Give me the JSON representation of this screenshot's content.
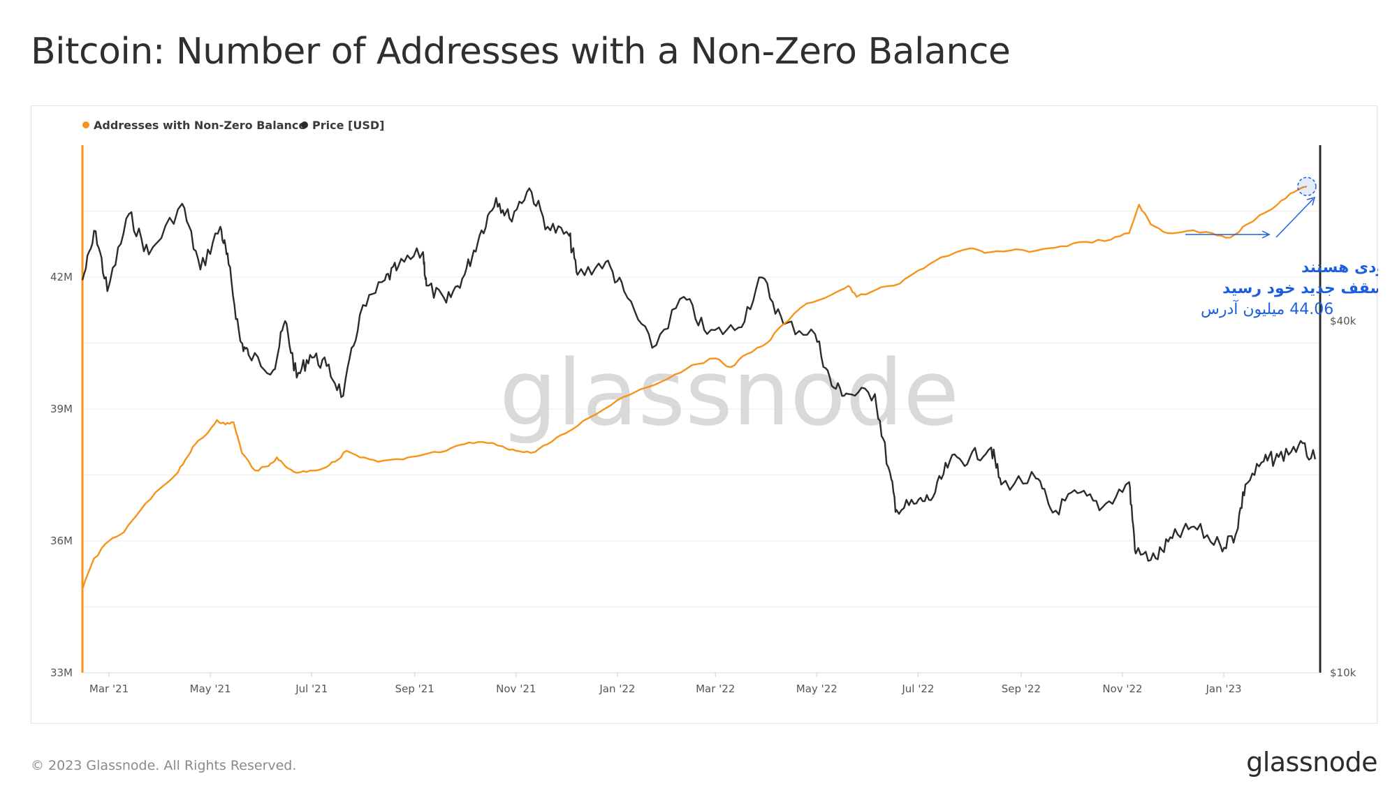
{
  "title": "Bitcoin: Number of Addresses with a Non-Zero Balance",
  "footer": {
    "copyright": "© 2023 Glassnode. All Rights Reserved.",
    "logo": "glassnode"
  },
  "watermark": "glassnode",
  "colors": {
    "addresses": "#f7931a",
    "price": "#2b2b2b",
    "annotation": "#1b5fe0",
    "grid": "#ececec"
  },
  "chart_data": {
    "type": "line",
    "title": "Bitcoin: Number of Addresses with a Non-Zero Balance",
    "legend_position": "top-left",
    "grid": true,
    "legend": [
      "Addresses with Non-Zero Balance",
      "Price [USD]"
    ],
    "x_ticks": [
      "Mar '21",
      "May '21",
      "Jul '21",
      "Sep '21",
      "Nov '21",
      "Jan '22",
      "Mar '22",
      "May '22",
      "Jul '22",
      "Sep '22",
      "Nov '22",
      "Jan '23"
    ],
    "x_range": [
      "2021-02-13",
      "2023-02-28"
    ],
    "y_left": {
      "ticks": [
        "33M",
        "36M",
        "39M",
        "42M"
      ],
      "range": [
        33000000,
        45000000
      ]
    },
    "y_right": {
      "ticks": [
        "$10k",
        "$40k"
      ],
      "scale": "log",
      "range": [
        10000,
        80000
      ]
    },
    "series": [
      {
        "name": "Addresses with Non-Zero Balance",
        "axis": "left",
        "points": [
          [
            "2021-02-13",
            34.9
          ],
          [
            "2021-02-20",
            35.6
          ],
          [
            "2021-03-01",
            36.0
          ],
          [
            "2021-03-10",
            36.2
          ],
          [
            "2021-03-20",
            36.7
          ],
          [
            "2021-04-01",
            37.2
          ],
          [
            "2021-04-10",
            37.5
          ],
          [
            "2021-04-16",
            37.85
          ],
          [
            "2021-04-22",
            38.2
          ],
          [
            "2021-04-28",
            38.4
          ],
          [
            "2021-05-05",
            38.75
          ],
          [
            "2021-05-10",
            38.65
          ],
          [
            "2021-05-15",
            38.7
          ],
          [
            "2021-05-20",
            38.0
          ],
          [
            "2021-05-28",
            37.6
          ],
          [
            "2021-06-05",
            37.7
          ],
          [
            "2021-06-10",
            37.9
          ],
          [
            "2021-06-15",
            37.7
          ],
          [
            "2021-06-22",
            37.55
          ],
          [
            "2021-06-30",
            37.6
          ],
          [
            "2021-07-08",
            37.65
          ],
          [
            "2021-07-15",
            37.8
          ],
          [
            "2021-07-22",
            38.05
          ],
          [
            "2021-07-30",
            37.9
          ],
          [
            "2021-08-10",
            37.8
          ],
          [
            "2021-08-25",
            37.85
          ],
          [
            "2021-09-05",
            37.95
          ],
          [
            "2021-09-20",
            38.05
          ],
          [
            "2021-10-01",
            38.2
          ],
          [
            "2021-10-12",
            38.25
          ],
          [
            "2021-10-24",
            38.15
          ],
          [
            "2021-11-01",
            38.05
          ],
          [
            "2021-11-10",
            38.0
          ],
          [
            "2021-11-20",
            38.2
          ],
          [
            "2021-12-01",
            38.45
          ],
          [
            "2021-12-15",
            38.8
          ],
          [
            "2022-01-01",
            39.2
          ],
          [
            "2022-01-15",
            39.45
          ],
          [
            "2022-02-01",
            39.7
          ],
          [
            "2022-02-15",
            40.0
          ],
          [
            "2022-03-01",
            40.15
          ],
          [
            "2022-03-10",
            39.95
          ],
          [
            "2022-03-20",
            40.25
          ],
          [
            "2022-04-01",
            40.5
          ],
          [
            "2022-04-10",
            40.9
          ],
          [
            "2022-04-25",
            41.4
          ],
          [
            "2022-05-10",
            41.6
          ],
          [
            "2022-05-20",
            41.8
          ],
          [
            "2022-05-25",
            41.55
          ],
          [
            "2022-06-05",
            41.7
          ],
          [
            "2022-06-20",
            41.85
          ],
          [
            "2022-07-01",
            42.15
          ],
          [
            "2022-07-15",
            42.45
          ],
          [
            "2022-08-01",
            42.65
          ],
          [
            "2022-08-10",
            42.55
          ],
          [
            "2022-08-25",
            42.6
          ],
          [
            "2022-09-10",
            42.6
          ],
          [
            "2022-09-25",
            42.7
          ],
          [
            "2022-10-10",
            42.8
          ],
          [
            "2022-10-25",
            42.85
          ],
          [
            "2022-11-05",
            43.0
          ],
          [
            "2022-11-11",
            43.65
          ],
          [
            "2022-11-18",
            43.2
          ],
          [
            "2022-11-28",
            43.0
          ],
          [
            "2022-12-10",
            43.05
          ],
          [
            "2022-12-25",
            43.0
          ],
          [
            "2023-01-05",
            42.9
          ],
          [
            "2023-01-15",
            43.2
          ],
          [
            "2023-01-30",
            43.55
          ],
          [
            "2023-02-10",
            43.9
          ],
          [
            "2023-02-20",
            44.06
          ]
        ]
      },
      {
        "name": "Price [USD]",
        "axis": "right",
        "points": [
          [
            "2021-02-13",
            47000
          ],
          [
            "2021-02-21",
            57000
          ],
          [
            "2021-02-28",
            45000
          ],
          [
            "2021-03-13",
            61000
          ],
          [
            "2021-03-25",
            52000
          ],
          [
            "2021-04-14",
            63500
          ],
          [
            "2021-04-25",
            49000
          ],
          [
            "2021-05-07",
            58000
          ],
          [
            "2021-05-12",
            50000
          ],
          [
            "2021-05-19",
            37000
          ],
          [
            "2021-05-24",
            35000
          ],
          [
            "2021-06-08",
            33000
          ],
          [
            "2021-06-15",
            40000
          ],
          [
            "2021-06-22",
            32000
          ],
          [
            "2021-06-30",
            35000
          ],
          [
            "2021-07-10",
            33500
          ],
          [
            "2021-07-20",
            29800
          ],
          [
            "2021-07-30",
            41000
          ],
          [
            "2021-08-14",
            47000
          ],
          [
            "2021-08-22",
            49500
          ],
          [
            "2021-09-06",
            52500
          ],
          [
            "2021-09-08",
            46000
          ],
          [
            "2021-09-20",
            43000
          ],
          [
            "2021-10-01",
            48000
          ],
          [
            "2021-10-10",
            56000
          ],
          [
            "2021-10-20",
            65000
          ],
          [
            "2021-10-28",
            60000
          ],
          [
            "2021-11-09",
            67500
          ],
          [
            "2021-11-20",
            58000
          ],
          [
            "2021-12-03",
            56000
          ],
          [
            "2021-12-08",
            48000
          ],
          [
            "2021-12-25",
            50500
          ],
          [
            "2022-01-05",
            45000
          ],
          [
            "2022-01-22",
            36000
          ],
          [
            "2022-02-10",
            44000
          ],
          [
            "2022-02-24",
            38000
          ],
          [
            "2022-03-15",
            39000
          ],
          [
            "2022-03-29",
            47500
          ],
          [
            "2022-04-11",
            39500
          ],
          [
            "2022-04-30",
            38000
          ],
          [
            "2022-05-10",
            31000
          ],
          [
            "2022-05-20",
            30000
          ],
          [
            "2022-06-05",
            30000
          ],
          [
            "2022-06-13",
            22500
          ],
          [
            "2022-06-18",
            19000
          ],
          [
            "2022-06-30",
            19500
          ],
          [
            "2022-07-10",
            20000
          ],
          [
            "2022-07-20",
            23000
          ],
          [
            "2022-08-01",
            23300
          ],
          [
            "2022-08-14",
            24300
          ],
          [
            "2022-08-20",
            21000
          ],
          [
            "2022-09-10",
            21500
          ],
          [
            "2022-09-20",
            18800
          ],
          [
            "2022-10-05",
            20300
          ],
          [
            "2022-10-20",
            19200
          ],
          [
            "2022-11-05",
            21200
          ],
          [
            "2022-11-09",
            16000
          ],
          [
            "2022-11-21",
            15700
          ],
          [
            "2022-12-01",
            17000
          ],
          [
            "2022-12-14",
            17800
          ],
          [
            "2022-12-30",
            16500
          ],
          [
            "2023-01-08",
            17200
          ],
          [
            "2023-01-14",
            21000
          ],
          [
            "2023-01-25",
            23000
          ],
          [
            "2023-02-03",
            23400
          ],
          [
            "2023-02-15",
            24500
          ],
          [
            "2023-02-25",
            23200
          ]
        ]
      }
    ]
  },
  "annotation": {
    "line1": "تعداد آدرس‌هایی که دارای حداقل موجودی هستند",
    "line2": "به سقف جدید خود رسید",
    "line3": "44.06 میلیون آدرس"
  }
}
